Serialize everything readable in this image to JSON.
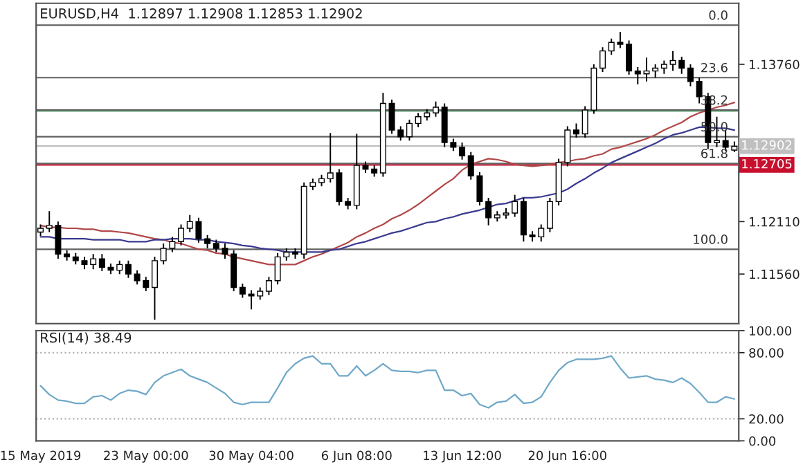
{
  "chart_data": [
    {
      "type": "candlestick",
      "title": "EURUSD,H4  1.12897 1.12908 1.12853 1.12902",
      "categories": [
        null,
        null,
        null,
        null,
        null,
        null,
        null,
        null,
        null,
        null,
        null,
        null,
        null,
        null,
        null,
        null,
        null,
        null,
        null,
        null,
        null,
        null,
        null,
        null,
        null,
        null,
        null,
        null,
        null,
        null,
        null,
        null,
        null,
        null,
        null,
        null,
        null,
        null,
        null,
        null,
        null,
        null,
        null,
        null,
        null,
        null,
        null,
        null,
        null,
        null,
        null,
        null,
        null,
        null,
        null,
        null,
        null,
        null,
        null,
        null,
        null,
        null,
        null,
        null,
        null,
        null,
        null,
        null,
        null,
        null,
        null,
        null,
        null,
        null,
        null,
        null,
        null,
        null,
        null,
        null
      ],
      "ohlc": [
        [
          1.12,
          1.1208,
          1.1196,
          1.1204
        ],
        [
          1.1204,
          1.1222,
          1.12,
          1.1207
        ],
        [
          1.1207,
          1.1211,
          1.1172,
          1.1177
        ],
        [
          1.1177,
          1.1181,
          1.117,
          1.1174
        ],
        [
          1.1174,
          1.1178,
          1.1166,
          1.117
        ],
        [
          1.117,
          1.1174,
          1.1161,
          1.1166
        ],
        [
          1.1166,
          1.1177,
          1.1161,
          1.1172
        ],
        [
          1.1172,
          1.1177,
          1.1159,
          1.1163
        ],
        [
          1.1163,
          1.1167,
          1.1156,
          1.116
        ],
        [
          1.116,
          1.117,
          1.1156,
          1.1166
        ],
        [
          1.1166,
          1.117,
          1.1152,
          1.1156
        ],
        [
          1.1156,
          1.116,
          1.1145,
          1.1149
        ],
        [
          1.1149,
          1.1153,
          1.1138,
          1.1142
        ],
        [
          1.1142,
          1.1174,
          1.1108,
          1.117
        ],
        [
          1.117,
          1.1188,
          1.1166,
          1.1183
        ],
        [
          1.1183,
          1.1195,
          1.1179,
          1.119
        ],
        [
          1.119,
          1.1208,
          1.1186,
          1.1204
        ],
        [
          1.1204,
          1.1218,
          1.12,
          1.1211
        ],
        [
          1.1211,
          1.1215,
          1.1189,
          1.1193
        ],
        [
          1.1193,
          1.1197,
          1.1183,
          1.1188
        ],
        [
          1.1188,
          1.1192,
          1.1179,
          1.1183
        ],
        [
          1.1183,
          1.1188,
          1.1172,
          1.1177
        ],
        [
          1.1177,
          1.1181,
          1.1138,
          1.1142
        ],
        [
          1.1142,
          1.1146,
          1.1131,
          1.1135
        ],
        [
          1.1135,
          1.1139,
          1.1119,
          1.1133
        ],
        [
          1.1133,
          1.1142,
          1.1129,
          1.1138
        ],
        [
          1.1138,
          1.1153,
          1.1134,
          1.1149
        ],
        [
          1.1149,
          1.1178,
          1.1145,
          1.1174
        ],
        [
          1.1174,
          1.1183,
          1.117,
          1.1179
        ],
        [
          1.1179,
          1.1183,
          1.1172,
          1.1177
        ],
        [
          1.1177,
          1.1252,
          1.1172,
          1.1248
        ],
        [
          1.1248,
          1.1256,
          1.1244,
          1.1252
        ],
        [
          1.1252,
          1.126,
          1.1248,
          1.1256
        ],
        [
          1.1256,
          1.1304,
          1.1252,
          1.1262
        ],
        [
          1.1262,
          1.1266,
          1.1228,
          1.1232
        ],
        [
          1.1232,
          1.1236,
          1.1224,
          1.1228
        ],
        [
          1.1228,
          1.1303,
          1.1224,
          1.127
        ],
        [
          1.127,
          1.1274,
          1.1262,
          1.1266
        ],
        [
          1.1266,
          1.127,
          1.1258,
          1.1262
        ],
        [
          1.1262,
          1.1346,
          1.1258,
          1.1335
        ],
        [
          1.1335,
          1.1339,
          1.1303,
          1.1307
        ],
        [
          1.1307,
          1.1311,
          1.1296,
          1.13
        ],
        [
          1.13,
          1.1318,
          1.1296,
          1.1314
        ],
        [
          1.1314,
          1.1325,
          1.131,
          1.1321
        ],
        [
          1.1321,
          1.1329,
          1.1317,
          1.1325
        ],
        [
          1.1325,
          1.1337,
          1.1321,
          1.1331
        ],
        [
          1.1331,
          1.1335,
          1.1289,
          1.1294
        ],
        [
          1.1294,
          1.1298,
          1.1285,
          1.1289
        ],
        [
          1.1289,
          1.1294,
          1.1276,
          1.128
        ],
        [
          1.128,
          1.1284,
          1.1255,
          1.1259
        ],
        [
          1.1259,
          1.1263,
          1.1228,
          1.1232
        ],
        [
          1.1232,
          1.1236,
          1.1207,
          1.1215
        ],
        [
          1.1215,
          1.1222,
          1.1211,
          1.1218
        ],
        [
          1.1218,
          1.1225,
          1.1214,
          1.122
        ],
        [
          1.122,
          1.1239,
          1.1216,
          1.1232
        ],
        [
          1.1232,
          1.1236,
          1.119,
          1.1197
        ],
        [
          1.1197,
          1.1201,
          1.119,
          1.1195
        ],
        [
          1.1195,
          1.1208,
          1.119,
          1.1204
        ],
        [
          1.1204,
          1.1236,
          1.12,
          1.1232
        ],
        [
          1.1232,
          1.1277,
          1.1228,
          1.1273
        ],
        [
          1.1273,
          1.1311,
          1.1269,
          1.1307
        ],
        [
          1.1307,
          1.1314,
          1.1299,
          1.1303
        ],
        [
          1.1303,
          1.1332,
          1.1299,
          1.1328
        ],
        [
          1.1328,
          1.1376,
          1.1324,
          1.1372
        ],
        [
          1.1372,
          1.1394,
          1.1368,
          1.139
        ],
        [
          1.139,
          1.1403,
          1.1386,
          1.1399
        ],
        [
          1.1399,
          1.141,
          1.1393,
          1.1397
        ],
        [
          1.1397,
          1.1401,
          1.1365,
          1.1369
        ],
        [
          1.1369,
          1.1373,
          1.1355,
          1.1366
        ],
        [
          1.1366,
          1.1383,
          1.1358,
          1.1369
        ],
        [
          1.1369,
          1.1376,
          1.1362,
          1.1372
        ],
        [
          1.1372,
          1.138,
          1.1366,
          1.1376
        ],
        [
          1.1376,
          1.139,
          1.1369,
          1.138
        ],
        [
          1.138,
          1.1384,
          1.1366,
          1.1372
        ],
        [
          1.1372,
          1.1376,
          1.1353,
          1.1358
        ],
        [
          1.1358,
          1.1362,
          1.1335,
          1.1342
        ],
        [
          1.1342,
          1.1346,
          1.1287,
          1.1294
        ],
        [
          1.1294,
          1.1321,
          1.1289,
          1.1296
        ],
        [
          1.1296,
          1.1307,
          1.1285,
          1.1289
        ],
        [
          1.1286,
          1.1295,
          1.1284,
          1.129
        ]
      ],
      "color": "#000000",
      "series": [
        {
          "type": "line",
          "color": "#b04848",
          "values": [
            1.1207,
            1.1205,
            1.1205,
            1.1204,
            1.1204,
            1.1203,
            1.1203,
            1.1201,
            1.1201,
            1.12,
            1.1199,
            1.1197,
            1.1195,
            1.1193,
            1.1192,
            1.1189,
            1.1188,
            1.1185,
            1.1182,
            1.1181,
            1.1178,
            1.1177,
            1.1174,
            1.1172,
            1.117,
            1.1168,
            1.1166,
            1.1166,
            1.1166,
            1.1166,
            1.117,
            1.1174,
            1.1177,
            1.1181,
            1.1185,
            1.1189,
            1.1195,
            1.1199,
            1.1204,
            1.1208,
            1.1214,
            1.1218,
            1.1223,
            1.1229,
            1.1236,
            1.1243,
            1.125,
            1.1256,
            1.1265,
            1.1271,
            1.1274,
            1.1277,
            1.1276,
            1.1274,
            1.1271,
            1.127,
            1.1269,
            1.127,
            1.1271,
            1.1273,
            1.1274,
            1.1276,
            1.1277,
            1.128,
            1.1282,
            1.1287,
            1.1289,
            1.1292,
            1.1295,
            1.1298,
            1.1302,
            1.1307,
            1.1311,
            1.1315,
            1.1321,
            1.1325,
            1.1328,
            1.1331,
            1.1333,
            1.1336
          ]
        },
        {
          "type": "line",
          "color": "#3a3a90",
          "values": [
            1.1195,
            1.1195,
            1.1193,
            1.1193,
            1.1193,
            1.1193,
            1.1192,
            1.1192,
            1.1192,
            1.1192,
            1.119,
            1.119,
            1.119,
            1.1192,
            1.1192,
            1.1193,
            1.1193,
            1.1193,
            1.1192,
            1.1192,
            1.119,
            1.1189,
            1.1188,
            1.1186,
            1.1185,
            1.1183,
            1.1182,
            1.1181,
            1.1179,
            1.1179,
            1.1179,
            1.1179,
            1.1179,
            1.1181,
            1.1182,
            1.1185,
            1.1188,
            1.119,
            1.1193,
            1.1196,
            1.1199,
            1.1201,
            1.1204,
            1.1207,
            1.121,
            1.1211,
            1.1214,
            1.1216,
            1.1219,
            1.1221,
            1.1223,
            1.1226,
            1.1229,
            1.123,
            1.1233,
            1.1236,
            1.1236,
            1.1237,
            1.1239,
            1.1241,
            1.1245,
            1.1251,
            1.1256,
            1.1262,
            1.1267,
            1.1273,
            1.1277,
            1.1281,
            1.1285,
            1.1289,
            1.1293,
            1.1298,
            1.1302,
            1.1304,
            1.1307,
            1.131,
            1.131,
            1.1309,
            1.1309,
            1.1307
          ]
        }
      ],
      "ylim": [
        1.1104,
        1.144
      ],
      "yticks": [
        {
          "value": 1.1376,
          "label": "1.13760"
        },
        {
          "value": 1.1211,
          "label": "1.12110"
        },
        {
          "value": 1.1156,
          "label": "1.11560"
        }
      ],
      "ref_lines": [
        {
          "axis": "y",
          "value": 1.1327,
          "color": "#5aa870"
        },
        {
          "axis": "y",
          "value": 1.12902,
          "label": "1.12902",
          "color": "#c0c0c0"
        },
        {
          "axis": "y",
          "value": 1.12705,
          "label": "1.12705",
          "color": "#c8102e"
        },
        {
          "axis": "y",
          "value": 1.1417,
          "color": "#606060"
        },
        {
          "axis": "y",
          "value": 1.1362,
          "color": "#606060"
        },
        {
          "axis": "y",
          "value": 1.1328,
          "color": "#606060"
        },
        {
          "axis": "y",
          "value": 1.13,
          "color": "#606060"
        },
        {
          "axis": "y",
          "value": 1.1272,
          "color": "#606060"
        },
        {
          "axis": "y",
          "value": 1.1182,
          "color": "#606060"
        }
      ],
      "annotations": [
        {
          "text": "0.0",
          "y": 1.1417
        },
        {
          "text": "23.6",
          "y": 1.1362
        },
        {
          "text": "38.2",
          "y": 1.1328
        },
        {
          "text": "50.0",
          "y": 1.13
        },
        {
          "text": "61.8",
          "y": 1.1272
        },
        {
          "text": "100.0",
          "y": 1.1182
        }
      ],
      "grid": false,
      "legend": false
    },
    {
      "type": "line",
      "title": "RSI(14) 38.49",
      "categories": [
        "15 May 2019",
        null,
        null,
        null,
        null,
        null,
        null,
        null,
        null,
        null,
        null,
        null,
        "23 May 00:00",
        null,
        null,
        null,
        null,
        null,
        null,
        null,
        null,
        null,
        null,
        null,
        "30 May 04:00",
        null,
        null,
        null,
        null,
        null,
        null,
        null,
        null,
        null,
        null,
        null,
        "6 Jun 08:00",
        null,
        null,
        null,
        null,
        null,
        null,
        null,
        null,
        null,
        null,
        null,
        "13 Jun 12:00",
        null,
        null,
        null,
        null,
        null,
        null,
        null,
        null,
        null,
        null,
        null,
        "20 Jun 16:00",
        null,
        null,
        null,
        null,
        null,
        null,
        null,
        null,
        null,
        null,
        null,
        null,
        null,
        null,
        null,
        null,
        null,
        null,
        null
      ],
      "series": [
        {
          "color": "#6fa8c8",
          "values": [
            50,
            42,
            37,
            36,
            34,
            34,
            40,
            41,
            37,
            43,
            46,
            45,
            42,
            53,
            59,
            62,
            65,
            59,
            56,
            53,
            48,
            43,
            35,
            33,
            35,
            35,
            35,
            48,
            62,
            70,
            75,
            77,
            70,
            70,
            59,
            59,
            68,
            59,
            64,
            70,
            64,
            63,
            63,
            62,
            64,
            64,
            46,
            46,
            41,
            43,
            33,
            30,
            35,
            36,
            42,
            34,
            35,
            40,
            53,
            64,
            71,
            74,
            74,
            74,
            75,
            77,
            66,
            57,
            58,
            59,
            56,
            55,
            53,
            57,
            52,
            44,
            35,
            35,
            40,
            38
          ]
        }
      ],
      "ylim": [
        0,
        100
      ],
      "yticks": [
        {
          "value": 100,
          "label": "100.00"
        },
        {
          "value": 80,
          "label": "80.00"
        },
        {
          "value": 20,
          "label": "20.00"
        },
        {
          "value": 0,
          "label": "0.00"
        }
      ],
      "ref_lines": [
        {
          "axis": "y",
          "value": 80,
          "color": "#b0b0b0",
          "line_style": "dotted"
        },
        {
          "axis": "y",
          "value": 20,
          "color": "#b0b0b0",
          "line_style": "dotted"
        }
      ],
      "grid": false,
      "legend": false
    }
  ]
}
